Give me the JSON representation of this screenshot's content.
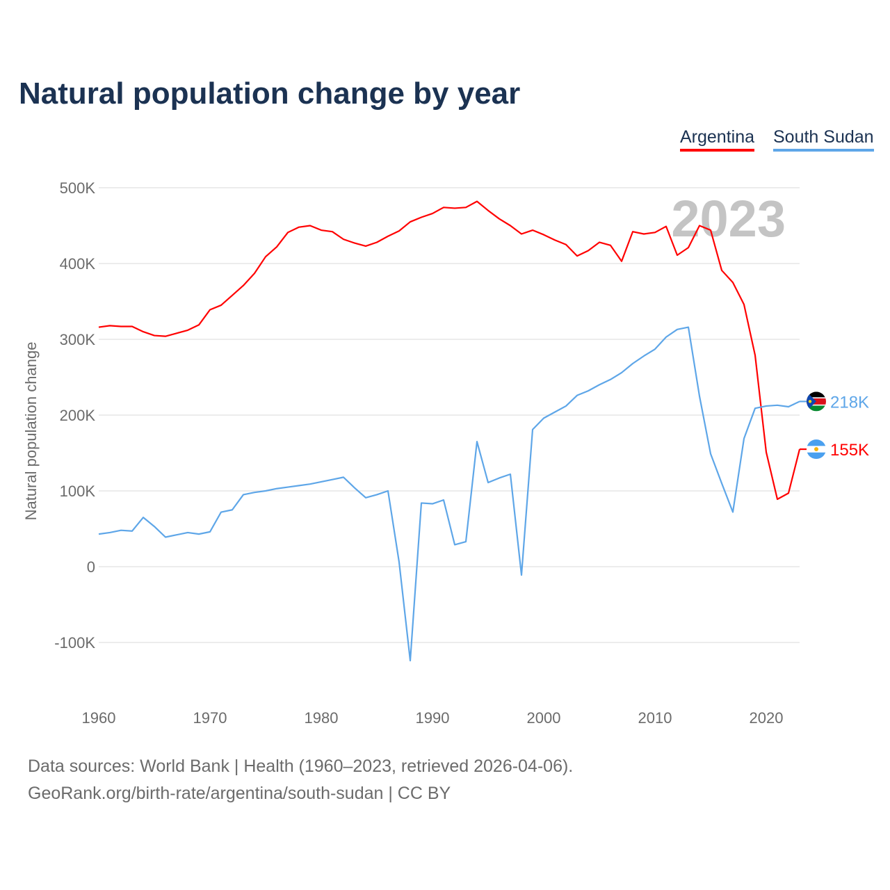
{
  "chart_data": {
    "type": "line",
    "title": "Natural population change by year",
    "xlabel": "",
    "ylabel": "Natural population change",
    "xlim": [
      1960,
      2023
    ],
    "ylim": [
      -150000,
      520000
    ],
    "x_ticks": [
      1960,
      1970,
      1980,
      1990,
      2000,
      2010,
      2020
    ],
    "x_tick_labels": [
      "1960",
      "1970",
      "1980",
      "1990",
      "2000",
      "2010",
      "2020"
    ],
    "y_ticks": [
      -100000,
      0,
      100000,
      200000,
      300000,
      400000,
      500000
    ],
    "y_tick_labels": [
      "-100K",
      "0",
      "100K",
      "200K",
      "300K",
      "400K",
      "500K"
    ],
    "grid": true,
    "legend_position": "top-right",
    "year_watermark": "2023",
    "x": [
      1960,
      1961,
      1962,
      1963,
      1964,
      1965,
      1966,
      1967,
      1968,
      1969,
      1970,
      1971,
      1972,
      1973,
      1974,
      1975,
      1976,
      1977,
      1978,
      1979,
      1980,
      1981,
      1982,
      1983,
      1984,
      1985,
      1986,
      1987,
      1988,
      1989,
      1990,
      1991,
      1992,
      1993,
      1994,
      1995,
      1996,
      1997,
      1998,
      1999,
      2000,
      2001,
      2002,
      2003,
      2004,
      2005,
      2006,
      2007,
      2008,
      2009,
      2010,
      2011,
      2012,
      2013,
      2014,
      2015,
      2016,
      2017,
      2018,
      2019,
      2020,
      2021,
      2022,
      2023
    ],
    "series": [
      {
        "name": "Argentina",
        "color": "#ff0000",
        "end_label": "155K",
        "values": [
          316000,
          318000,
          317000,
          317000,
          310000,
          305000,
          304000,
          308000,
          312000,
          319000,
          339000,
          345000,
          358000,
          371000,
          387000,
          409000,
          422000,
          441000,
          448000,
          450000,
          444000,
          442000,
          432000,
          427000,
          423000,
          428000,
          436000,
          443000,
          455000,
          461000,
          466000,
          474000,
          473000,
          474000,
          482000,
          470000,
          459000,
          450000,
          439000,
          444000,
          438000,
          431000,
          425000,
          410000,
          417000,
          428000,
          424000,
          403000,
          442000,
          439000,
          441000,
          449000,
          411000,
          421000,
          450000,
          444000,
          391000,
          375000,
          346000,
          279000,
          151000,
          89000,
          97000,
          155000
        ]
      },
      {
        "name": "South Sudan",
        "color": "#5ea6e8",
        "end_label": "218K",
        "values": [
          43000,
          45000,
          48000,
          47000,
          65000,
          53000,
          39000,
          42000,
          45000,
          43000,
          46000,
          72000,
          75000,
          95000,
          98000,
          100000,
          103000,
          105000,
          107000,
          109000,
          112000,
          115000,
          118000,
          104000,
          91000,
          95000,
          100000,
          6000,
          -124000,
          84000,
          83000,
          88000,
          29000,
          33000,
          165000,
          111000,
          117000,
          122000,
          -11000,
          181000,
          196000,
          204000,
          212000,
          226000,
          232000,
          240000,
          247000,
          256000,
          268000,
          278000,
          287000,
          303000,
          313000,
          316000,
          225000,
          149000,
          110000,
          72000,
          169000,
          209000,
          212000,
          213000,
          211000,
          218000
        ]
      }
    ]
  },
  "footer": {
    "source_line": "Data sources: World Bank | Health (1960–2023, retrieved 2026-04-06).",
    "credit_line": "GeoRank.org/birth-rate/argentina/south-sudan | CC BY"
  }
}
